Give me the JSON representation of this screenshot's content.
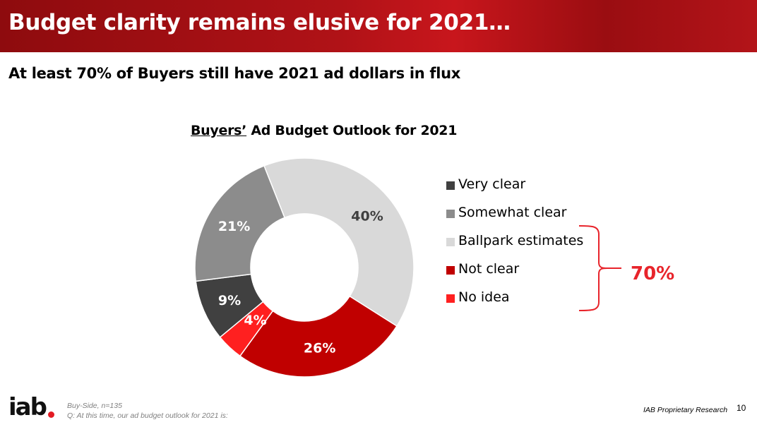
{
  "slide": {
    "title": "Budget clarity remains elusive for 2021…",
    "subtitle": "At least 70% of Buyers still have 2021 ad dollars in flux",
    "page_number": "10"
  },
  "chart_data": {
    "type": "pie",
    "title_underlined": "Buyers’",
    "title_rest": " Ad Budget Outlook for 2021",
    "donut": true,
    "categories": [
      "Very clear",
      "Somewhat clear",
      "Ballpark estimates",
      "Not clear",
      "No idea"
    ],
    "values": [
      9,
      21,
      40,
      26,
      4
    ],
    "data_labels": [
      "9%",
      "21%",
      "40%",
      "26%",
      "4%"
    ],
    "colors": [
      "#404040",
      "#8c8c8c",
      "#d9d9d9",
      "#c00000",
      "#ff2020"
    ],
    "legend_position": "right",
    "annotation": {
      "label": "70%",
      "color": "#e8242b",
      "brackets": [
        "Ballpark estimates",
        "Not clear",
        "No idea"
      ]
    }
  },
  "footer": {
    "logo_text": "iab",
    "note_base": "Buy-Side, n=135",
    "note_question": "Q: At this time, our ad budget outlook for 2021 is:",
    "right_text": "IAB Proprietary Research"
  }
}
